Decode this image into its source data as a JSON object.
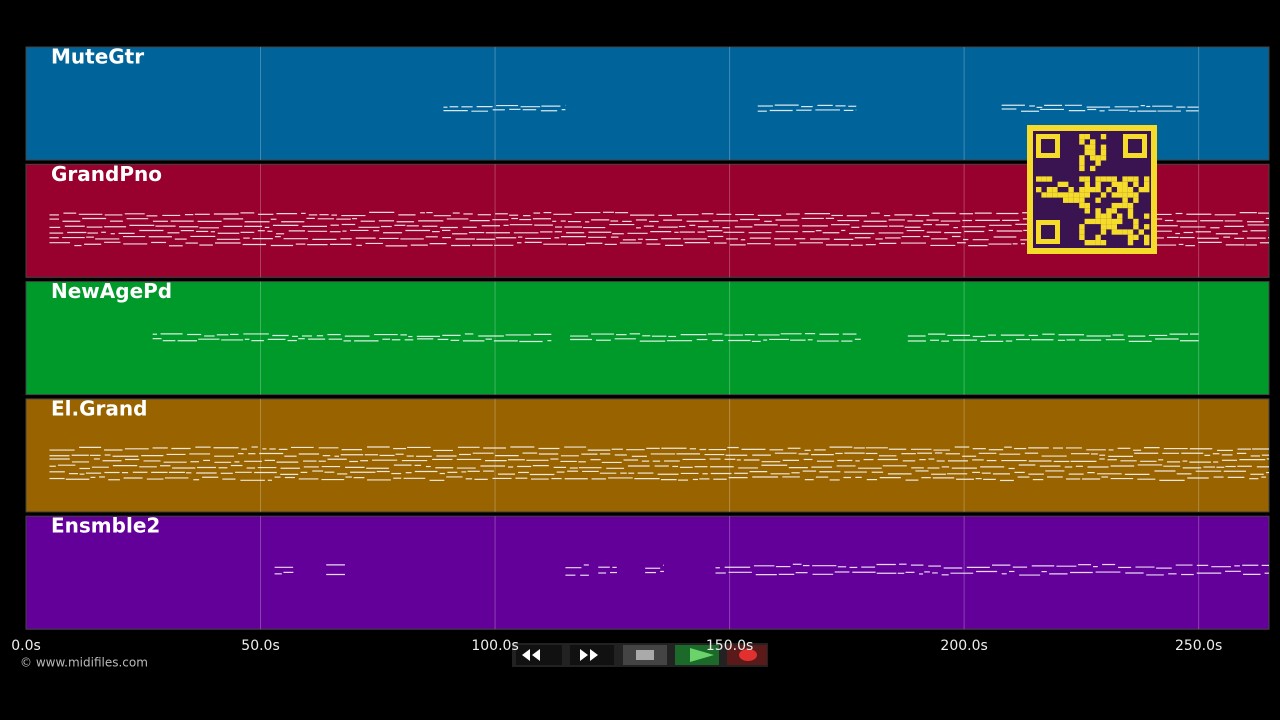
{
  "chart_data": {
    "type": "pianoroll",
    "xlim": [
      0,
      265
    ],
    "xticks": [
      {
        "value": 0,
        "label": "0.0s"
      },
      {
        "value": 50,
        "label": "50.0s"
      },
      {
        "value": 100,
        "label": "100.0s"
      },
      {
        "value": 150,
        "label": "150.0s"
      },
      {
        "value": 200,
        "label": "200.0s"
      },
      {
        "value": 250,
        "label": "250.0s"
      }
    ],
    "grid": true,
    "tracks": [
      {
        "name": "MuteGtr",
        "color": "#00649a",
        "segments": [
          [
            89,
            115
          ],
          [
            156,
            177
          ],
          [
            208,
            250
          ]
        ]
      },
      {
        "name": "GrandPno",
        "color": "#98002e",
        "segments": [
          [
            5,
            265
          ]
        ]
      },
      {
        "name": "NewAgePd",
        "color": "#009a2a",
        "segments": [
          [
            27,
            112
          ],
          [
            116,
            178
          ],
          [
            188,
            250
          ]
        ]
      },
      {
        "name": "El.Grand",
        "color": "#996400",
        "segments": [
          [
            5,
            265
          ]
        ]
      },
      {
        "name": "Ensmble2",
        "color": "#64009a",
        "segments": [
          [
            53,
            57
          ],
          [
            64,
            68
          ],
          [
            115,
            120
          ],
          [
            122,
            126
          ],
          [
            132,
            136
          ],
          [
            147,
            265
          ]
        ]
      }
    ]
  },
  "footer": {
    "copyright": "© www.midifiles.com"
  }
}
